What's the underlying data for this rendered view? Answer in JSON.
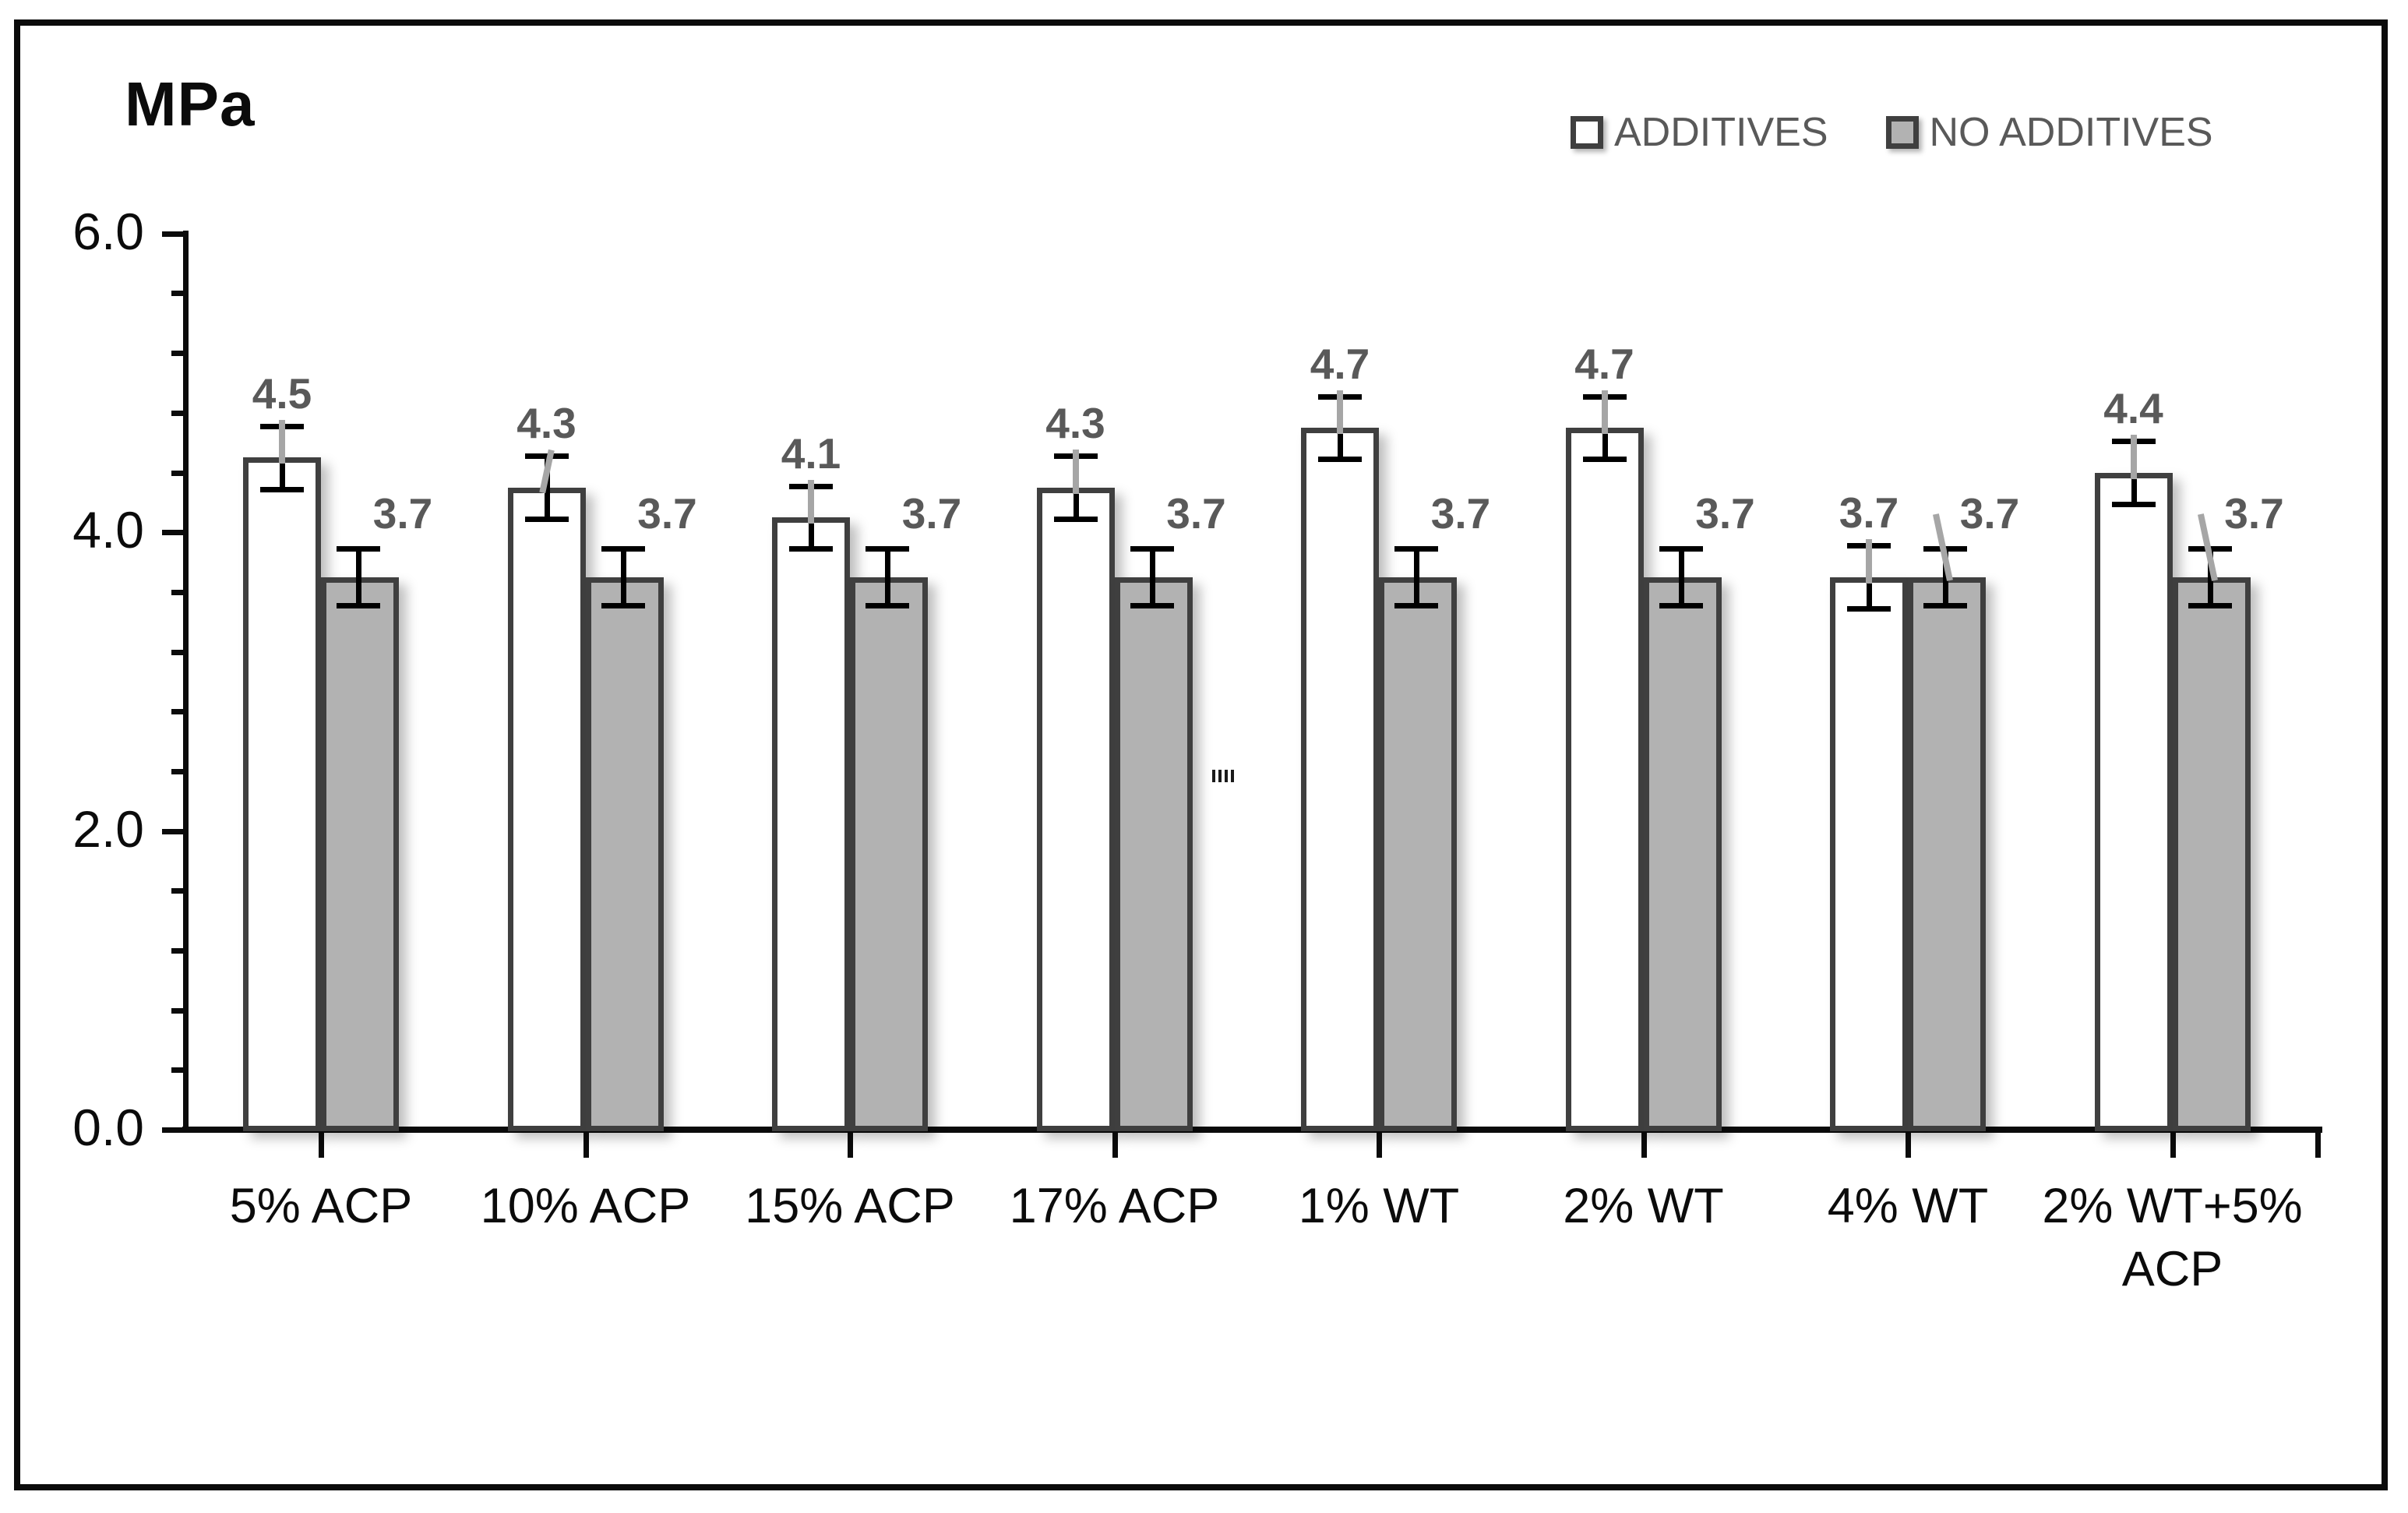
{
  "chart_data": {
    "type": "bar",
    "title": "",
    "ylabel": "MPa",
    "xlabel": "",
    "categories": [
      "5% ACP",
      "10% ACP",
      "15% ACP",
      "17% ACP",
      "1% WT",
      "2% WT",
      "4% WT",
      "2% WT+5% ACP"
    ],
    "series": [
      {
        "name": "ADDITIVES",
        "fill": "#ffffff",
        "values": [
          4.5,
          4.3,
          4.1,
          4.3,
          4.7,
          4.7,
          3.7,
          4.4
        ],
        "data_labels": [
          "4.5",
          "4.3",
          "4.1",
          "4.3",
          "4.7",
          "4.7",
          "3.7",
          "4.4"
        ],
        "error": 0.21
      },
      {
        "name": "NO ADDITIVES",
        "fill": "#b2b2b2",
        "values": [
          3.7,
          3.7,
          3.7,
          3.7,
          3.7,
          3.7,
          3.7,
          3.7
        ],
        "data_labels": [
          "3.7",
          "3.7",
          "3.7",
          "3.7",
          "3.7",
          "3.7",
          "3.7",
          "3.7"
        ],
        "error": 0.19
      }
    ],
    "ylim": [
      0,
      6
    ],
    "yticks": [
      {
        "value": 0,
        "label": "0.0"
      },
      {
        "value": 2,
        "label": "2.0"
      },
      {
        "value": 4,
        "label": "4.0"
      },
      {
        "value": 6,
        "label": "6.0"
      }
    ],
    "minor_tick_step": 0.4,
    "grid": false,
    "legend_position": "top-right",
    "colors": {
      "bar_border": "#3f3f3f",
      "gray_fill": "#b2b2b2",
      "data_label_text": "#595959",
      "legend_text": "#595959",
      "leader_line": "#a6a6a6",
      "error_bar": "#000000",
      "axis": "#0b0b0b"
    },
    "label_leader_lines": {
      "white_bar_tilted_category_indexes": [
        1
      ],
      "gray_bar_tilted_category_indexes": [
        6,
        7
      ]
    }
  }
}
